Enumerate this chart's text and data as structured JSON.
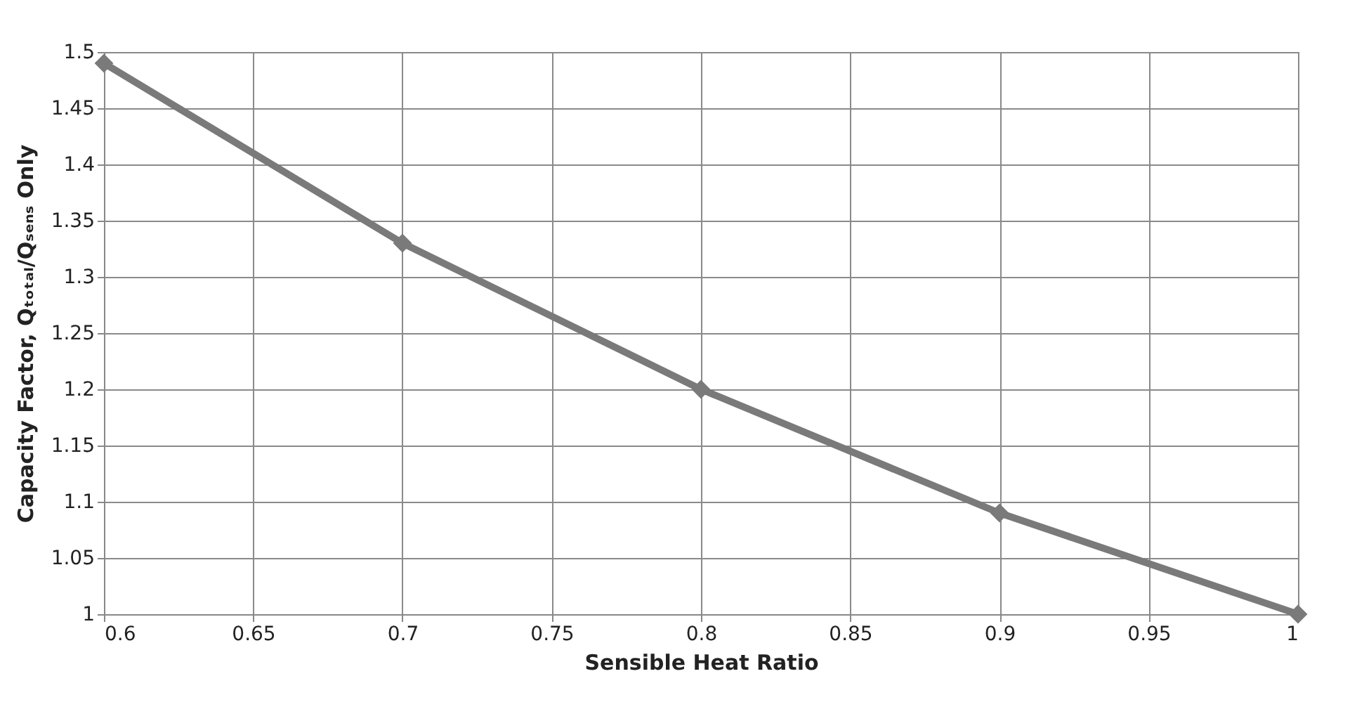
{
  "chart_data": {
    "type": "line",
    "xlabel": "Sensible Heat Ratio",
    "ylabel": "Capacity Factor, Qₜₒₜₐₗ/Qₛₑₙₛ Only",
    "x": [
      0.6,
      0.7,
      0.8,
      0.9,
      1
    ],
    "series": [
      {
        "color": "#7a7a7a",
        "values": [
          1.49,
          1.33,
          1.2,
          1.09,
          1.0
        ]
      }
    ],
    "xlim": [
      0.6,
      1
    ],
    "xticks": [
      0.6,
      0.65,
      0.7,
      0.75,
      0.8,
      0.85,
      0.9,
      0.95,
      1
    ],
    "ylim": [
      1,
      1.5
    ],
    "yticks": [
      1,
      1.05,
      1.1,
      1.15,
      1.2,
      1.25,
      1.3,
      1.35,
      1.4,
      1.45,
      1.5
    ],
    "grid": true,
    "marker": "diamond",
    "line_style": "solid"
  }
}
